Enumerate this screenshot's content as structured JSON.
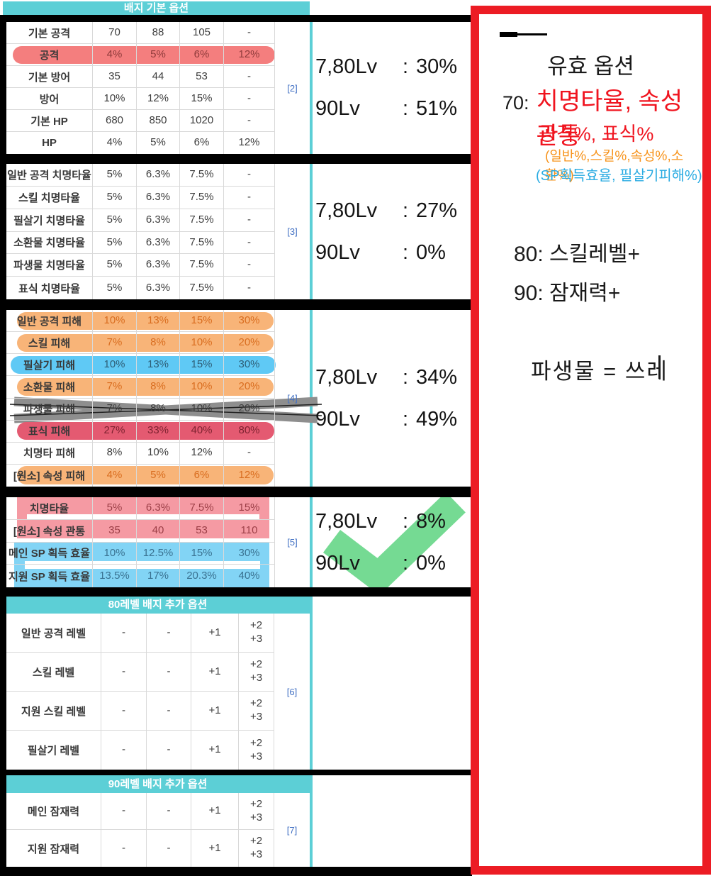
{
  "header": {
    "title": "배지 기본 옵션"
  },
  "annotation_colon": ":",
  "tables": {
    "basic": {
      "ref": "[2]",
      "rows": [
        {
          "label": "기본 공격",
          "values": [
            "70",
            "88",
            "105",
            "-"
          ],
          "hl": "none"
        },
        {
          "label": "공격",
          "values": [
            "4%",
            "5%",
            "6%",
            "12%"
          ],
          "hl": "pink"
        },
        {
          "label": "기본 방어",
          "values": [
            "35",
            "44",
            "53",
            "-"
          ],
          "hl": "none"
        },
        {
          "label": "방어",
          "values": [
            "10%",
            "12%",
            "15%",
            "-"
          ],
          "hl": "none"
        },
        {
          "label": "기본 HP",
          "values": [
            "680",
            "850",
            "1020",
            "-"
          ],
          "hl": "none"
        },
        {
          "label": "HP",
          "values": [
            "4%",
            "5%",
            "6%",
            "12%"
          ],
          "hl": "none"
        }
      ],
      "annotation": {
        "l1": "7,80Lv",
        "v1": "30%",
        "l2": "90Lv",
        "v2": "51%"
      }
    },
    "crit": {
      "ref": "[3]",
      "rows": [
        {
          "label": "일반 공격 치명타율",
          "values": [
            "5%",
            "6.3%",
            "7.5%",
            "-"
          ],
          "hl": "none"
        },
        {
          "label": "스킬 치명타율",
          "values": [
            "5%",
            "6.3%",
            "7.5%",
            "-"
          ],
          "hl": "none"
        },
        {
          "label": "필살기 치명타율",
          "values": [
            "5%",
            "6.3%",
            "7.5%",
            "-"
          ],
          "hl": "none"
        },
        {
          "label": "소환물 치명타율",
          "values": [
            "5%",
            "6.3%",
            "7.5%",
            "-"
          ],
          "hl": "none"
        },
        {
          "label": "파생물 치명타율",
          "values": [
            "5%",
            "6.3%",
            "7.5%",
            "-"
          ],
          "hl": "none"
        },
        {
          "label": "표식 치명타율",
          "values": [
            "5%",
            "6.3%",
            "7.5%",
            "-"
          ],
          "hl": "none"
        }
      ],
      "annotation": {
        "l1": "7,80Lv",
        "v1": "27%",
        "l2": "90Lv",
        "v2": "0%"
      }
    },
    "damage": {
      "ref": "[4]",
      "rows": [
        {
          "label": "일반 공격 피해",
          "values": [
            "10%",
            "13%",
            "15%",
            "30%"
          ],
          "hl": "orange"
        },
        {
          "label": "스킬 피해",
          "values": [
            "7%",
            "8%",
            "10%",
            "20%"
          ],
          "hl": "orange"
        },
        {
          "label": "필살기 피해",
          "values": [
            "10%",
            "13%",
            "15%",
            "30%"
          ],
          "hl": "blue"
        },
        {
          "label": "소환물 피해",
          "values": [
            "7%",
            "8%",
            "10%",
            "20%"
          ],
          "hl": "orange"
        },
        {
          "label": "파생물 피해",
          "values": [
            "7%",
            "8%",
            "10%",
            "20%"
          ],
          "hl": "cross"
        },
        {
          "label": "표식 피해",
          "values": [
            "27%",
            "33%",
            "40%",
            "80%"
          ],
          "hl": "red"
        },
        {
          "label": "치명타 피해",
          "values": [
            "8%",
            "10%",
            "12%",
            "-"
          ],
          "hl": "none"
        },
        {
          "label": "[원소] 속성 피해",
          "values": [
            "4%",
            "5%",
            "6%",
            "12%"
          ],
          "hl": "orange"
        }
      ],
      "annotation": {
        "l1": "7,80Lv",
        "v1": "34%",
        "l2": "90Lv",
        "v2": "49%"
      }
    },
    "util": {
      "ref": "[5]",
      "rows": [
        {
          "label": "치명타율",
          "values": [
            "5%",
            "6.3%",
            "7.5%",
            "15%"
          ],
          "hl": "pinkframe"
        },
        {
          "label": "[원소] 속성 관통",
          "values": [
            "35",
            "40",
            "53",
            "110"
          ],
          "hl": "pinkframe"
        },
        {
          "label": "메인 SP 획득 효율",
          "values": [
            "10%",
            "12.5%",
            "15%",
            "30%"
          ],
          "hl": "blueframe"
        },
        {
          "label": "지원 SP 획득 효율",
          "values": [
            "13.5%",
            "17%",
            "20.3%",
            "40%"
          ],
          "hl": "blueframe"
        }
      ],
      "annotation": {
        "l1": "7,80Lv",
        "v1": "8%",
        "l2": "90Lv",
        "v2": "0%"
      }
    },
    "lv80": {
      "header": "80레벨 배지 추가 옵션",
      "ref": "[6]",
      "rows": [
        {
          "label": "일반 공격 레벨",
          "values": [
            "-",
            "-",
            "+1",
            "+2\n+3"
          ],
          "hl": "none"
        },
        {
          "label": "스킬 레벨",
          "values": [
            "-",
            "-",
            "+1",
            "+2\n+3"
          ],
          "hl": "none"
        },
        {
          "label": "지원 스킬 레벨",
          "values": [
            "-",
            "-",
            "+1",
            "+2\n+3"
          ],
          "hl": "none"
        },
        {
          "label": "필살기 레벨",
          "values": [
            "-",
            "-",
            "+1",
            "+2\n+3"
          ],
          "hl": "none"
        }
      ]
    },
    "lv90": {
      "header": "90레벨 배지 추가 옵션",
      "ref": "[7]",
      "rows": [
        {
          "label": "메인 잠재력",
          "values": [
            "-",
            "-",
            "+1",
            "+2\n+3"
          ],
          "hl": "none"
        },
        {
          "label": "지원 잠재력",
          "values": [
            "-",
            "-",
            "+1",
            "+2\n+3"
          ],
          "hl": "none"
        }
      ]
    }
  },
  "side_note": {
    "title": "유효 옵션",
    "line_70_prefix": "70:",
    "line_70_red": "치명타율, 속성관통",
    "line_attack": "공격%, 표식%",
    "line_orange": "(일반%,스킬%,속성%,소환%)",
    "line_blue": "(SP획득효율, 필살기피해%)",
    "line_80": "80: 스킬레벨+",
    "line_90": "90: 잠재력+",
    "line_trash": "파생물  = 쓰레"
  },
  "colors": {
    "teal": "#5ccfd6",
    "red_box": "#ec1c24",
    "ref_blue": "#4472c4",
    "grid_line": "#d9d9d9",
    "hl_pink": "#f47e7e",
    "hl_orange": "#f8b478",
    "hl_blue": "#5fc9f5",
    "hl_red": "#e45a71",
    "frame_pink": "#f59aa3",
    "frame_blue": "#82d4f5",
    "check_green": "#66d687",
    "cross_gray": "#8e8e8e",
    "note_red": "#f0141f",
    "note_orange": "#f7941d",
    "note_blue": "#29abe2"
  }
}
